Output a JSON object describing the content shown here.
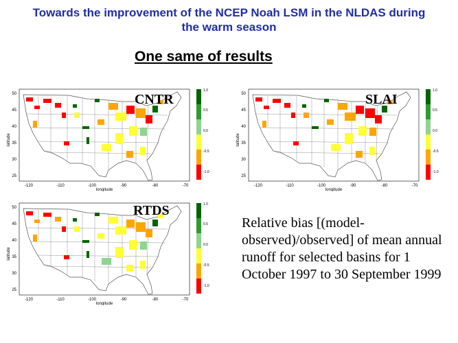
{
  "title": {
    "line1": "Towards the improvement of the NCEP Noah LSM in the NLDAS during",
    "line2": "the warm season"
  },
  "subtitle": "One same of results",
  "panels": [
    {
      "label": "CNTR"
    },
    {
      "label": "SLAI"
    },
    {
      "label": "RTDS"
    }
  ],
  "map_axes": {
    "xlabel": "longitude",
    "ylabel": "latitude",
    "x_ticks": [
      "-120",
      "-110",
      "-100",
      "-90",
      "-80",
      "-70"
    ],
    "y_ticks": [
      "25",
      "30",
      "35",
      "40",
      "45",
      "50"
    ]
  },
  "legend": {
    "ticks": [
      "1.0",
      "0.5",
      "0.0",
      "-0.5",
      "-1.0"
    ],
    "colors": [
      "#006400",
      "#2e9b2e",
      "#8fd48f",
      "#ffff33",
      "#ffa500",
      "#ff0000"
    ]
  },
  "caption": "Relative bias [(model-observed)/observed] of mean annual runoff for selected basins for 1 October 1997 to 30 September 1999"
}
